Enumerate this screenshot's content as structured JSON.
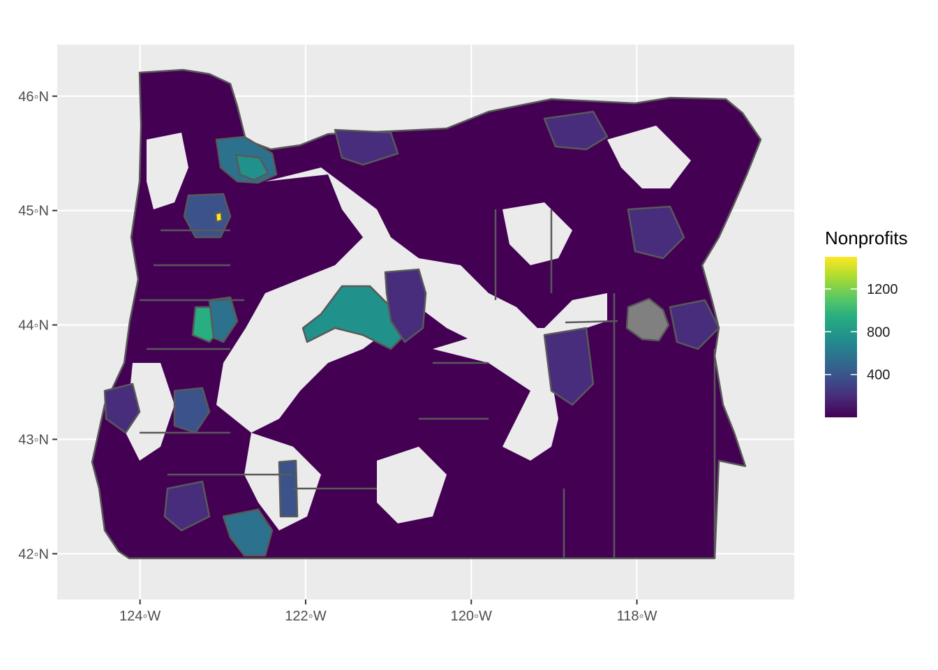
{
  "chart_data": {
    "type": "choropleth",
    "region": "Oregon",
    "x_axis": {
      "range": [
        -125,
        -116.1
      ],
      "ticks": [
        {
          "value": -124,
          "label": "124◦W"
        },
        {
          "value": -122,
          "label": "122◦W"
        },
        {
          "value": -120,
          "label": "120◦W"
        },
        {
          "value": -118,
          "label": "118◦W"
        }
      ]
    },
    "y_axis": {
      "range": [
        41.6,
        46.45
      ],
      "ticks": [
        {
          "value": 46,
          "label": "46◦N"
        },
        {
          "value": 45,
          "label": "45◦N"
        },
        {
          "value": 44,
          "label": "44◦N"
        },
        {
          "value": 43,
          "label": "43◦N"
        },
        {
          "value": 42,
          "label": "42◦N"
        }
      ]
    },
    "grid": true,
    "legend": {
      "title": "Nonprofits",
      "position": "right",
      "scale": "viridis",
      "range": [
        0,
        1500
      ],
      "breaks": [
        {
          "value": 400,
          "label": "400"
        },
        {
          "value": 800,
          "label": "800"
        },
        {
          "value": 1200,
          "label": "1200"
        }
      ]
    },
    "na_color": "#808080",
    "colors": {
      "panel": "#ebebeb",
      "grid": "#ffffff",
      "border": "#595959",
      "low": "#440154",
      "high": "#fde725"
    }
  }
}
